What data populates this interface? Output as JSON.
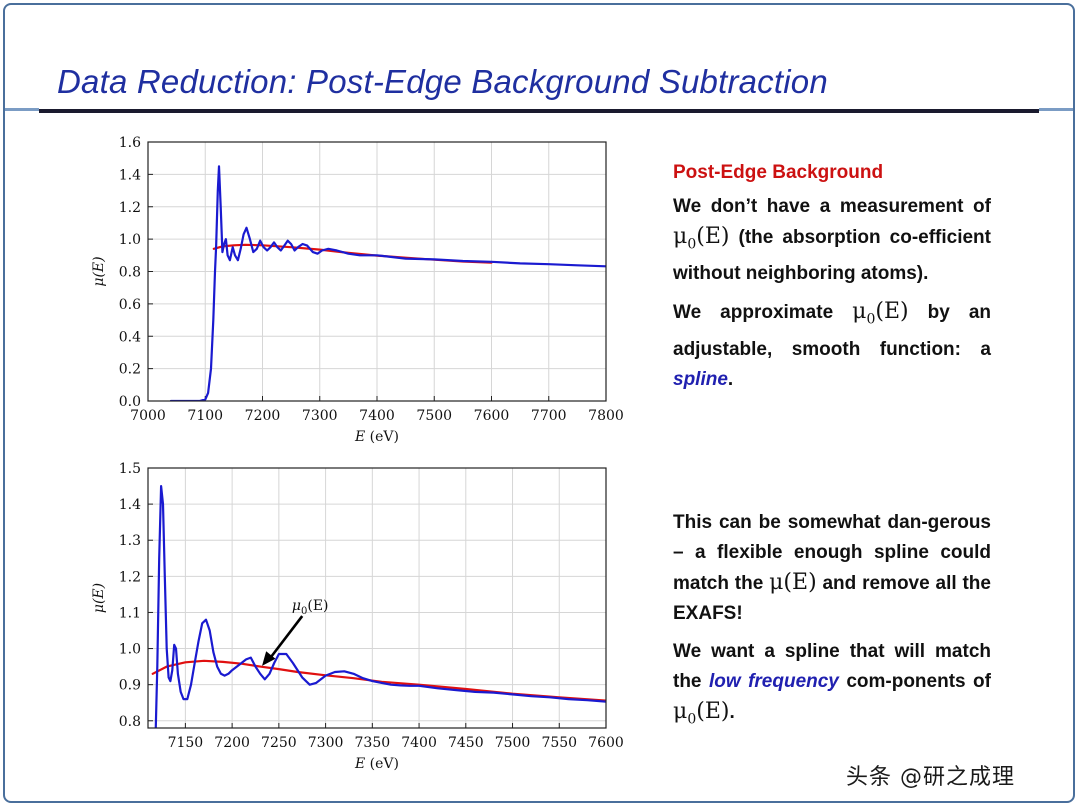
{
  "slide": {
    "title": "Data Reduction: Post-Edge Background Subtraction"
  },
  "side_text": {
    "heading": "Post-Edge Background",
    "p1_a": "We don’t have a measurement of ",
    "p1_b": " (the absorption co-efficient without neighboring atoms).",
    "p2_a": "We approximate ",
    "p2_b": " by an adjustable, smooth function: a ",
    "p2_em": "spline",
    "p2_c": ".",
    "p3_a": "This can be somewhat dan-gerous – a flexible enough spline could match the ",
    "p3_b": " and remove all the EXAFS!",
    "p4_a": "We want a spline that will match the ",
    "p4_em": "low frequency",
    "p4_b": " com-ponents of ",
    "p4_c": ".",
    "math_mu0": "μ",
    "math_mu0_sub": "0",
    "math_mu0_arg": "(E)",
    "math_mu": "μ(E)"
  },
  "watermark": "头条 @研之成理",
  "colors": {
    "title": "#1f2fa0",
    "data_line": "#1a1ad0",
    "spline_line": "#e01010",
    "heading": "#cc1111",
    "frame": "#4a6f9c"
  },
  "chart_data": [
    {
      "type": "line",
      "xlabel_var": "E",
      "xlabel_unit": "(eV)",
      "ylabel": "μ(E)",
      "xlim": [
        7000,
        7800
      ],
      "ylim": [
        0.0,
        1.6
      ],
      "xticks": [
        7000,
        7100,
        7200,
        7300,
        7400,
        7500,
        7600,
        7700,
        7800
      ],
      "yticks": [
        0.0,
        0.2,
        0.4,
        0.6,
        0.8,
        1.0,
        1.2,
        1.4,
        1.6
      ],
      "ytick_decimals": 1,
      "grid": true,
      "series": [
        {
          "role": "data",
          "color": "#1a1ad0",
          "points": [
            [
              7040,
              0.0
            ],
            [
              7090,
              0.0
            ],
            [
              7100,
              0.01
            ],
            [
              7105,
              0.05
            ],
            [
              7110,
              0.2
            ],
            [
              7114,
              0.5
            ],
            [
              7117,
              0.8
            ],
            [
              7119,
              0.95
            ],
            [
              7122,
              1.3
            ],
            [
              7124,
              1.45
            ],
            [
              7127,
              1.2
            ],
            [
              7130,
              0.92
            ],
            [
              7133,
              0.97
            ],
            [
              7136,
              1.0
            ],
            [
              7139,
              0.9
            ],
            [
              7143,
              0.87
            ],
            [
              7148,
              0.95
            ],
            [
              7152,
              0.9
            ],
            [
              7157,
              0.87
            ],
            [
              7162,
              0.94
            ],
            [
              7167,
              1.03
            ],
            [
              7172,
              1.07
            ],
            [
              7178,
              1.0
            ],
            [
              7184,
              0.92
            ],
            [
              7190,
              0.94
            ],
            [
              7196,
              0.99
            ],
            [
              7202,
              0.95
            ],
            [
              7208,
              0.93
            ],
            [
              7214,
              0.95
            ],
            [
              7220,
              0.98
            ],
            [
              7226,
              0.95
            ],
            [
              7232,
              0.93
            ],
            [
              7238,
              0.96
            ],
            [
              7244,
              0.99
            ],
            [
              7250,
              0.97
            ],
            [
              7256,
              0.93
            ],
            [
              7262,
              0.95
            ],
            [
              7270,
              0.97
            ],
            [
              7278,
              0.96
            ],
            [
              7288,
              0.92
            ],
            [
              7296,
              0.91
            ],
            [
              7304,
              0.93
            ],
            [
              7315,
              0.94
            ],
            [
              7330,
              0.93
            ],
            [
              7350,
              0.91
            ],
            [
              7370,
              0.9
            ],
            [
              7400,
              0.9
            ],
            [
              7450,
              0.88
            ],
            [
              7500,
              0.875
            ],
            [
              7550,
              0.865
            ],
            [
              7600,
              0.86
            ],
            [
              7650,
              0.85
            ],
            [
              7700,
              0.845
            ],
            [
              7750,
              0.838
            ],
            [
              7800,
              0.832
            ]
          ]
        },
        {
          "role": "spline",
          "color": "#e01010",
          "points": [
            [
              7115,
              0.94
            ],
            [
              7130,
              0.955
            ],
            [
              7150,
              0.962
            ],
            [
              7170,
              0.965
            ],
            [
              7200,
              0.962
            ],
            [
              7250,
              0.95
            ],
            [
              7300,
              0.935
            ],
            [
              7350,
              0.915
            ],
            [
              7400,
              0.898
            ],
            [
              7450,
              0.885
            ],
            [
              7500,
              0.873
            ],
            [
              7550,
              0.862
            ],
            [
              7600,
              0.855
            ]
          ]
        }
      ]
    },
    {
      "type": "line",
      "xlabel_var": "E",
      "xlabel_unit": "(eV)",
      "ylabel": "μ(E)",
      "xlim": [
        7110,
        7600
      ],
      "ylim": [
        0.78,
        1.5
      ],
      "xticks": [
        7150,
        7200,
        7250,
        7300,
        7350,
        7400,
        7450,
        7500,
        7550,
        7600
      ],
      "yticks": [
        0.8,
        0.9,
        1.0,
        1.1,
        1.2,
        1.3,
        1.4,
        1.5
      ],
      "ytick_decimals": 1,
      "grid": true,
      "annotation": {
        "text_var": "μ",
        "text_sub": "0",
        "text_arg": "(E)",
        "arrow_to": [
          7232,
          0.952
        ],
        "arrow_from": [
          7275,
          1.09
        ]
      },
      "series": [
        {
          "role": "data",
          "color": "#1a1ad0",
          "points": [
            [
              7118,
              0.75
            ],
            [
              7120,
              0.95
            ],
            [
              7122,
              1.25
            ],
            [
              7124,
              1.45
            ],
            [
              7126,
              1.4
            ],
            [
              7128,
              1.2
            ],
            [
              7130,
              1.0
            ],
            [
              7132,
              0.92
            ],
            [
              7134,
              0.91
            ],
            [
              7136,
              0.94
            ],
            [
              7138,
              1.01
            ],
            [
              7140,
              1.0
            ],
            [
              7142,
              0.93
            ],
            [
              7145,
              0.88
            ],
            [
              7148,
              0.86
            ],
            [
              7152,
              0.86
            ],
            [
              7156,
              0.9
            ],
            [
              7160,
              0.96
            ],
            [
              7164,
              1.02
            ],
            [
              7168,
              1.07
            ],
            [
              7172,
              1.08
            ],
            [
              7176,
              1.05
            ],
            [
              7180,
              0.99
            ],
            [
              7184,
              0.95
            ],
            [
              7188,
              0.93
            ],
            [
              7192,
              0.925
            ],
            [
              7196,
              0.93
            ],
            [
              7200,
              0.94
            ],
            [
              7205,
              0.95
            ],
            [
              7210,
              0.96
            ],
            [
              7215,
              0.97
            ],
            [
              7220,
              0.975
            ],
            [
              7225,
              0.95
            ],
            [
              7230,
              0.93
            ],
            [
              7235,
              0.915
            ],
            [
              7240,
              0.93
            ],
            [
              7245,
              0.96
            ],
            [
              7250,
              0.985
            ],
            [
              7258,
              0.985
            ],
            [
              7265,
              0.96
            ],
            [
              7275,
              0.92
            ],
            [
              7283,
              0.9
            ],
            [
              7290,
              0.905
            ],
            [
              7300,
              0.925
            ],
            [
              7310,
              0.935
            ],
            [
              7320,
              0.937
            ],
            [
              7330,
              0.93
            ],
            [
              7340,
              0.918
            ],
            [
              7350,
              0.91
            ],
            [
              7360,
              0.905
            ],
            [
              7370,
              0.9
            ],
            [
              7380,
              0.898
            ],
            [
              7390,
              0.897
            ],
            [
              7400,
              0.897
            ],
            [
              7420,
              0.89
            ],
            [
              7440,
              0.885
            ],
            [
              7460,
              0.88
            ],
            [
              7480,
              0.878
            ],
            [
              7500,
              0.873
            ],
            [
              7520,
              0.868
            ],
            [
              7540,
              0.865
            ],
            [
              7560,
              0.86
            ],
            [
              7580,
              0.857
            ],
            [
              7600,
              0.853
            ]
          ]
        },
        {
          "role": "spline",
          "color": "#e01010",
          "points": [
            [
              7115,
              0.93
            ],
            [
              7130,
              0.95
            ],
            [
              7150,
              0.962
            ],
            [
              7170,
              0.966
            ],
            [
              7190,
              0.963
            ],
            [
              7210,
              0.958
            ],
            [
              7230,
              0.95
            ],
            [
              7250,
              0.943
            ],
            [
              7270,
              0.935
            ],
            [
              7300,
              0.926
            ],
            [
              7330,
              0.918
            ],
            [
              7360,
              0.908
            ],
            [
              7400,
              0.9
            ],
            [
              7450,
              0.888
            ],
            [
              7500,
              0.875
            ],
            [
              7550,
              0.865
            ],
            [
              7600,
              0.856
            ]
          ]
        }
      ]
    }
  ]
}
